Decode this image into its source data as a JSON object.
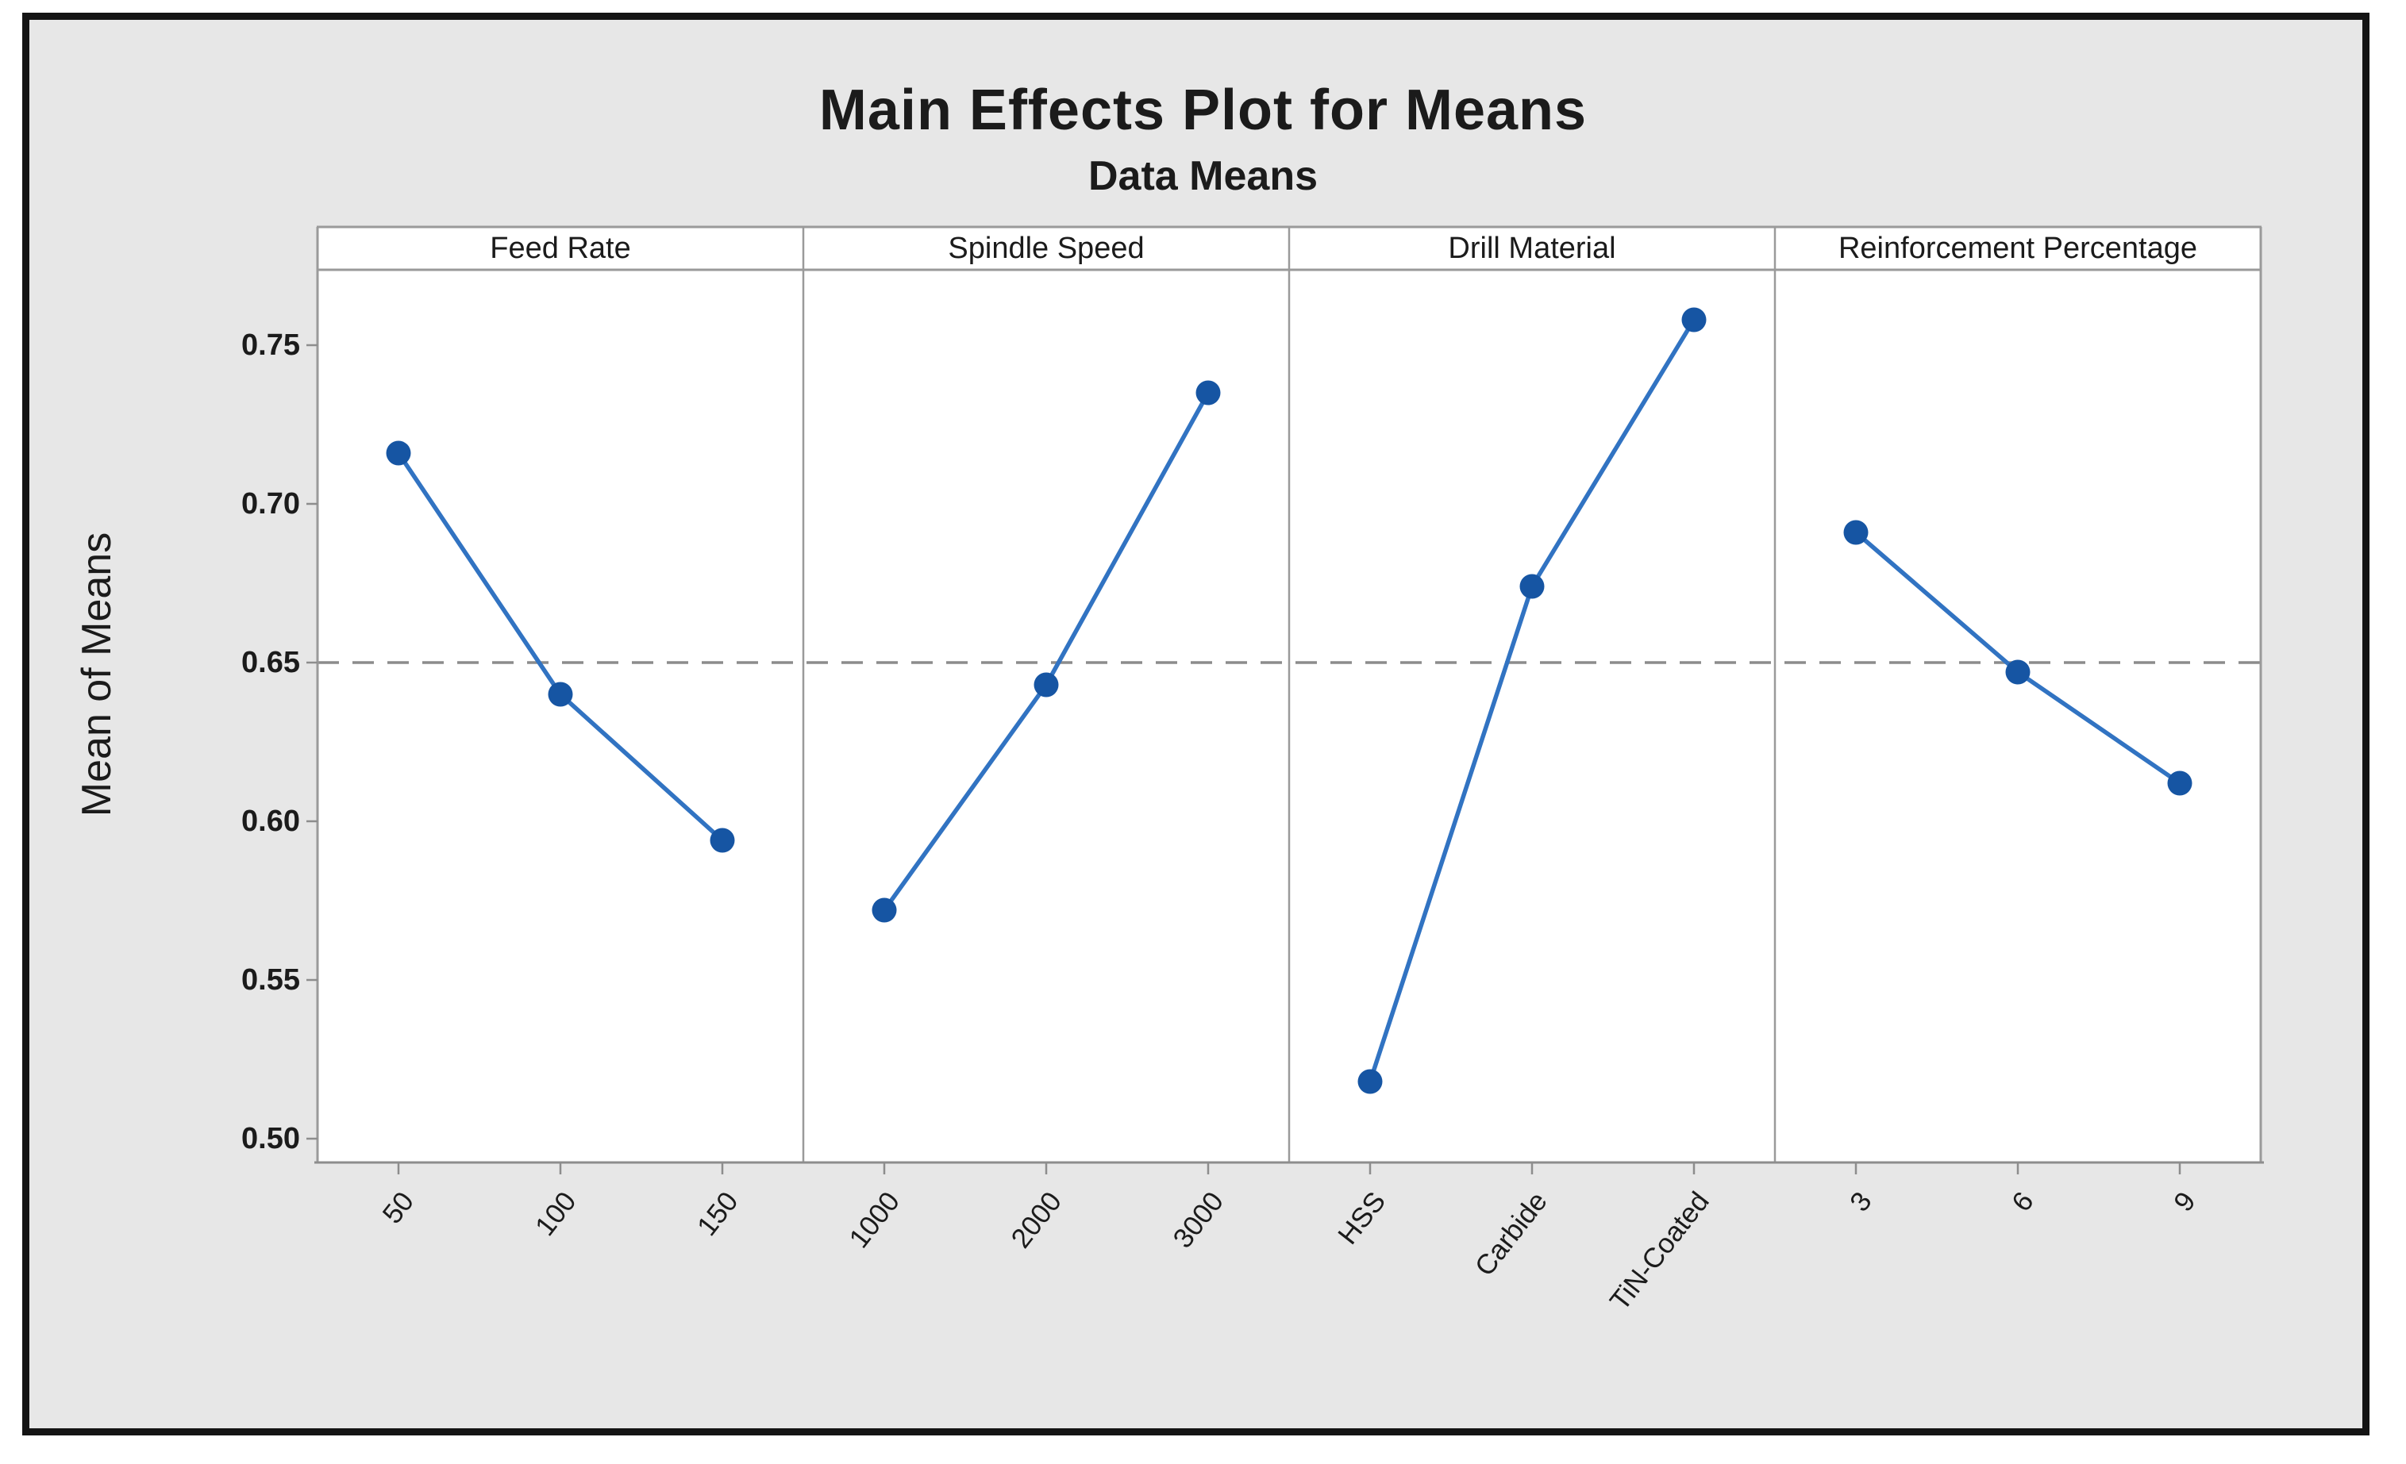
{
  "title": "Main Effects Plot for Means",
  "subtitle": "Data Means",
  "y_axis": {
    "label": "Mean of Means",
    "tick_labels": [
      "0.75",
      "0.70",
      "0.65",
      "0.60",
      "0.55",
      "0.50"
    ]
  },
  "chart_data": {
    "type": "line",
    "title": "Main Effects Plot for Means",
    "subtitle": "Data Means",
    "ylabel": "Mean of Means",
    "ylim": [
      0.4925,
      0.774
    ],
    "yticks": [
      0.75,
      0.7,
      0.65,
      0.6,
      0.55,
      0.5
    ],
    "grid": false,
    "reference_line_y": 0.65,
    "panels": [
      {
        "label": "Feed Rate",
        "categories": [
          "50",
          "100",
          "150"
        ],
        "values": [
          0.716,
          0.64,
          0.594
        ]
      },
      {
        "label": "Spindle Speed",
        "categories": [
          "1000",
          "2000",
          "3000"
        ],
        "values": [
          0.572,
          0.643,
          0.735
        ]
      },
      {
        "label": "Drill Material",
        "categories": [
          "HSS",
          "Carbide",
          "TiN-Coated"
        ],
        "values": [
          0.518,
          0.674,
          0.758
        ]
      },
      {
        "label": "Reinforcement Percentage",
        "categories": [
          "3",
          "6",
          "9"
        ],
        "values": [
          0.691,
          0.647,
          0.612
        ]
      }
    ],
    "colors": {
      "marker": "#1655a3",
      "line": "#3173c2",
      "reference": "#8c8c8c",
      "panel_border": "#9a9a9a",
      "axis": "#8d8d8d",
      "canvas_background": "#e7e7e7",
      "plot_background": "#ffffff",
      "frame_border": "#141414"
    }
  }
}
